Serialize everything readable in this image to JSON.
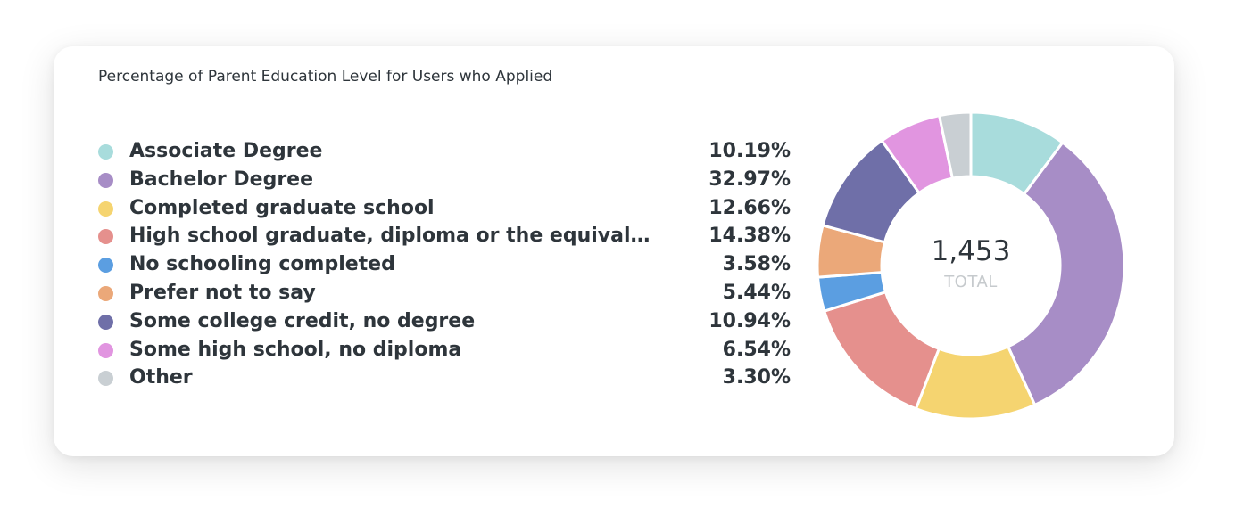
{
  "chart_data": {
    "type": "pie",
    "variant": "donut",
    "title": "Percentage of Parent Education Level for Users who Applied",
    "total_value": "1,453",
    "total_label": "TOTAL",
    "legend_position": "left",
    "categories": [
      "Associate Degree",
      "Bachelor Degree",
      "Completed graduate school",
      "High school graduate, diploma or the equivalent (for e…",
      "No schooling completed",
      "Prefer not to say",
      "Some college credit, no degree",
      "Some high school, no diploma",
      "Other"
    ],
    "values": [
      10.19,
      32.97,
      12.66,
      14.38,
      3.58,
      5.44,
      10.94,
      6.54,
      3.3
    ],
    "value_labels": [
      "10.19%",
      "32.97%",
      "12.66%",
      "14.38%",
      "3.58%",
      "5.44%",
      "10.94%",
      "6.54%",
      "3.30%"
    ],
    "colors": [
      "#a8dcdc",
      "#a78dc6",
      "#f5d470",
      "#e5908d",
      "#5b9ee1",
      "#eba879",
      "#6f6fa8",
      "#e195e0",
      "#c9cfd3"
    ]
  }
}
